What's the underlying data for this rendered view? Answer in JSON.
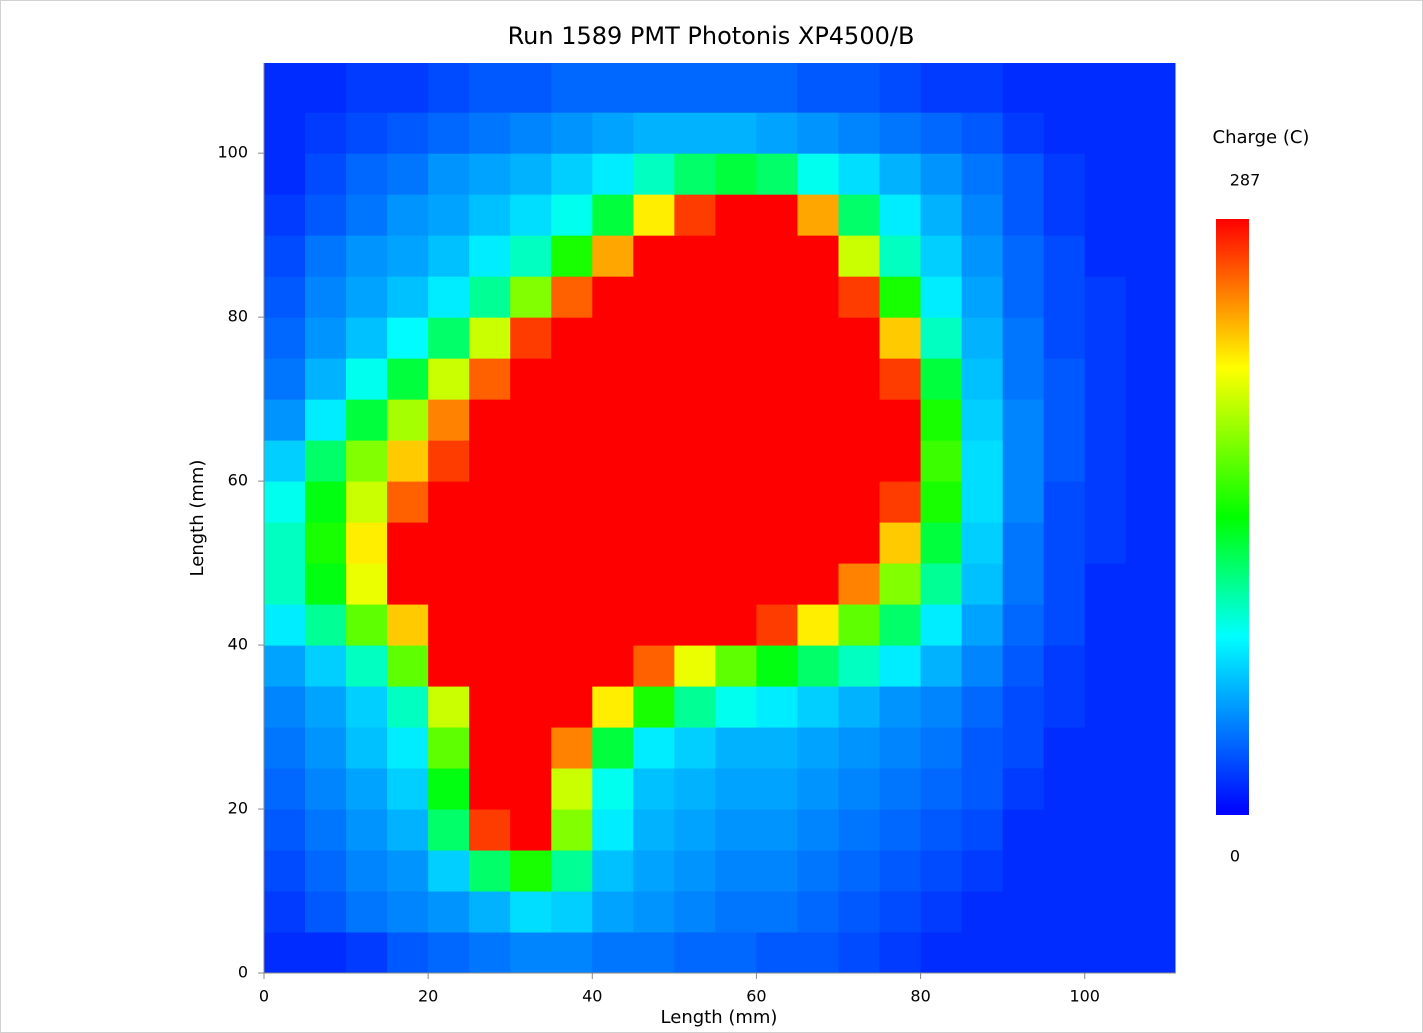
{
  "chart_data": {
    "type": "heatmap",
    "title": "Run 1589 PMT Photonis XP4500/B",
    "x_label": "Length (mm)",
    "y_label": "Length (mm)",
    "colorbar_label": "Charge (C)",
    "xlim": [
      0,
      111
    ],
    "ylim": [
      0,
      111
    ],
    "xticks": [
      0,
      20,
      40,
      60,
      80,
      100
    ],
    "yticks": [
      0,
      20,
      40,
      60,
      80,
      100
    ],
    "zlim": [
      0,
      287
    ],
    "colormap": [
      {
        "stop": 0,
        "color": "#0000ff"
      },
      {
        "stop": 0.3,
        "color": "#00ffff"
      },
      {
        "stop": 0.5,
        "color": "#00ff00"
      },
      {
        "stop": 0.75,
        "color": "#ffff00"
      },
      {
        "stop": 1,
        "color": "#ff0000"
      }
    ],
    "x_bins": [
      0,
      5,
      10,
      15,
      20,
      25,
      30,
      35,
      40,
      45,
      50,
      55,
      60,
      65,
      70,
      75,
      80,
      85,
      90,
      95,
      100,
      105,
      111
    ],
    "y_bins": [
      0,
      5,
      10,
      15,
      20,
      25,
      30,
      35,
      40,
      45,
      50,
      55,
      60,
      65,
      70,
      75,
      80,
      85,
      90,
      95,
      100,
      105,
      111
    ],
    "z": [
      [
        15,
        15,
        20,
        30,
        35,
        40,
        45,
        45,
        40,
        40,
        35,
        35,
        30,
        30,
        25,
        20,
        15,
        15,
        15,
        15,
        15,
        15
      ],
      [
        20,
        30,
        40,
        45,
        50,
        60,
        75,
        70,
        55,
        50,
        45,
        40,
        40,
        35,
        30,
        25,
        20,
        15,
        15,
        15,
        15,
        15
      ],
      [
        25,
        35,
        45,
        50,
        70,
        120,
        150,
        110,
        65,
        55,
        50,
        45,
        45,
        40,
        35,
        30,
        25,
        20,
        15,
        15,
        15,
        15
      ],
      [
        30,
        40,
        50,
        60,
        120,
        270,
        287,
        180,
        80,
        60,
        55,
        50,
        50,
        45,
        40,
        35,
        30,
        25,
        15,
        15,
        15,
        15
      ],
      [
        35,
        45,
        55,
        70,
        140,
        287,
        287,
        200,
        90,
        65,
        60,
        55,
        55,
        50,
        45,
        40,
        35,
        30,
        20,
        15,
        15,
        15
      ],
      [
        40,
        50,
        65,
        80,
        170,
        287,
        287,
        250,
        130,
        80,
        70,
        60,
        60,
        55,
        50,
        45,
        40,
        30,
        25,
        15,
        15,
        15
      ],
      [
        45,
        55,
        70,
        100,
        200,
        287,
        287,
        287,
        220,
        150,
        110,
        90,
        80,
        70,
        60,
        50,
        45,
        35,
        25,
        20,
        15,
        15
      ],
      [
        55,
        70,
        100,
        170,
        287,
        287,
        287,
        287,
        287,
        260,
        210,
        170,
        140,
        120,
        100,
        80,
        60,
        45,
        30,
        20,
        15,
        15
      ],
      [
        80,
        110,
        170,
        230,
        287,
        287,
        287,
        287,
        287,
        287,
        287,
        287,
        270,
        220,
        170,
        120,
        80,
        55,
        35,
        25,
        15,
        15
      ],
      [
        100,
        140,
        210,
        287,
        287,
        287,
        287,
        287,
        287,
        287,
        287,
        287,
        287,
        287,
        250,
        180,
        110,
        65,
        40,
        25,
        15,
        15
      ],
      [
        100,
        150,
        220,
        287,
        287,
        287,
        287,
        287,
        287,
        287,
        287,
        287,
        287,
        287,
        287,
        230,
        130,
        70,
        40,
        25,
        20,
        15
      ],
      [
        90,
        140,
        200,
        260,
        287,
        287,
        287,
        287,
        287,
        287,
        287,
        287,
        287,
        287,
        287,
        270,
        150,
        75,
        45,
        25,
        20,
        15
      ],
      [
        70,
        120,
        180,
        230,
        270,
        287,
        287,
        287,
        287,
        287,
        287,
        287,
        287,
        287,
        287,
        287,
        160,
        75,
        45,
        30,
        20,
        15
      ],
      [
        50,
        80,
        130,
        190,
        250,
        287,
        287,
        287,
        287,
        287,
        287,
        287,
        287,
        287,
        287,
        287,
        150,
        70,
        45,
        30,
        20,
        15
      ],
      [
        40,
        60,
        90,
        130,
        200,
        260,
        287,
        287,
        287,
        287,
        287,
        287,
        287,
        287,
        287,
        270,
        130,
        65,
        40,
        30,
        20,
        15
      ],
      [
        35,
        50,
        65,
        85,
        120,
        200,
        270,
        287,
        287,
        287,
        287,
        287,
        287,
        287,
        287,
        230,
        100,
        60,
        40,
        25,
        20,
        15
      ],
      [
        30,
        45,
        55,
        65,
        80,
        110,
        180,
        260,
        287,
        287,
        287,
        287,
        287,
        287,
        270,
        150,
        80,
        55,
        35,
        25,
        20,
        15
      ],
      [
        25,
        40,
        50,
        55,
        65,
        80,
        100,
        150,
        240,
        287,
        287,
        287,
        287,
        287,
        200,
        100,
        70,
        50,
        35,
        25,
        15,
        15
      ],
      [
        20,
        30,
        40,
        50,
        55,
        65,
        75,
        90,
        130,
        220,
        270,
        287,
        287,
        240,
        120,
        80,
        60,
        45,
        30,
        20,
        15,
        15
      ],
      [
        15,
        25,
        35,
        40,
        50,
        55,
        60,
        70,
        80,
        100,
        120,
        130,
        120,
        90,
        75,
        60,
        50,
        40,
        30,
        20,
        15,
        15
      ],
      [
        15,
        20,
        25,
        30,
        35,
        40,
        45,
        50,
        55,
        60,
        60,
        60,
        55,
        50,
        45,
        40,
        35,
        30,
        20,
        15,
        15,
        15
      ],
      [
        15,
        15,
        20,
        20,
        25,
        30,
        30,
        35,
        35,
        35,
        35,
        35,
        35,
        30,
        30,
        25,
        20,
        20,
        15,
        15,
        15,
        15
      ]
    ]
  }
}
